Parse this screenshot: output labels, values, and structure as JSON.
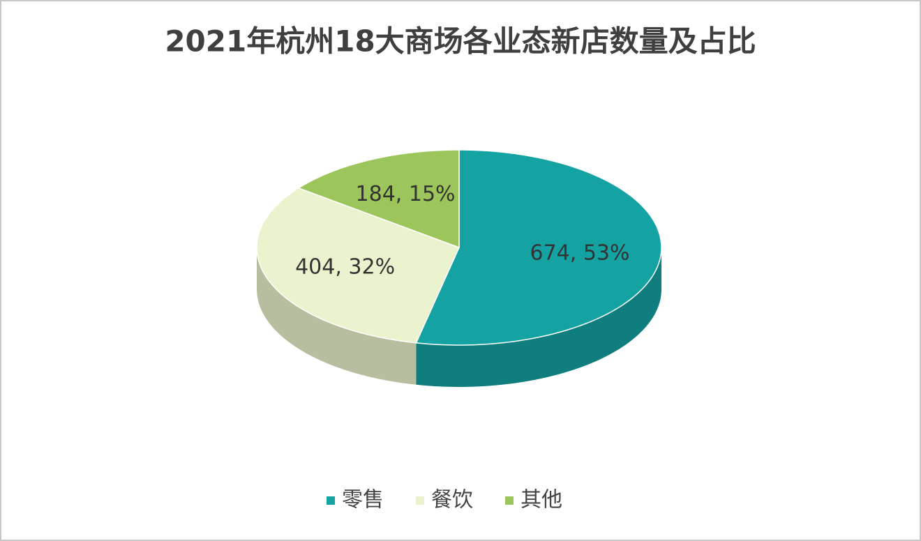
{
  "chart_data": {
    "type": "pie",
    "title": "2021年杭州18大商场各业态新店数量及占比",
    "categories": [
      "零售",
      "餐饮",
      "其他"
    ],
    "values": [
      674,
      404,
      184
    ],
    "value_labels": [
      "674, 53%",
      "404, 32%",
      "184, 15%"
    ],
    "colors": [
      "#15a2a3",
      "#eaf3cd",
      "#9cc65b"
    ],
    "legend": "bottom"
  }
}
